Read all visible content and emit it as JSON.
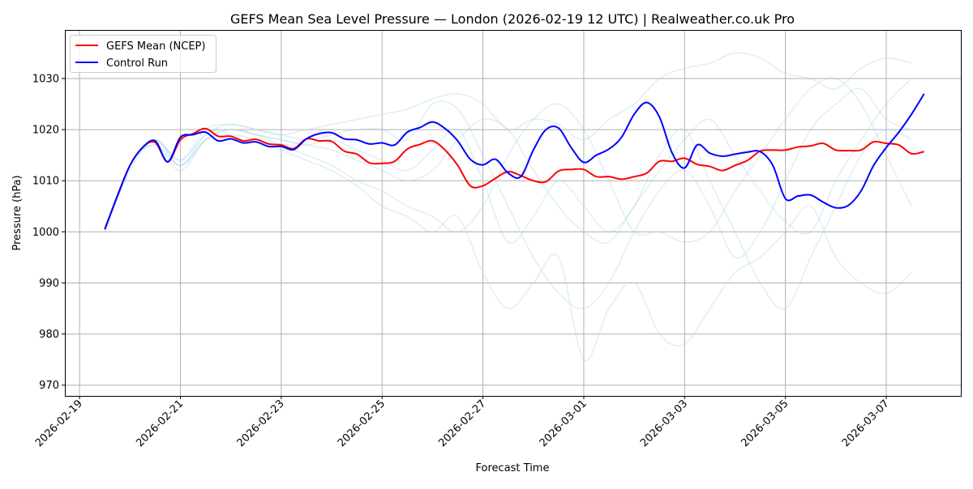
{
  "chart_data": {
    "type": "line",
    "title": "GEFS Mean Sea Level Pressure — London (2026-02-19 12 UTC) | Realweather.co.uk Pro",
    "xlabel": "Forecast Time",
    "ylabel": "Pressure (hPa)",
    "ylim": [
      967.9,
      1039.5
    ],
    "xlim": [
      "2026-02-18T17:00",
      "2026-03-08T11:30"
    ],
    "grid": true,
    "legend_placement": "top-left",
    "x_ticks": [
      "2026-02-19",
      "2026-02-21",
      "2026-02-23",
      "2026-02-25",
      "2026-02-27",
      "2026-03-01",
      "2026-03-03",
      "2026-03-05",
      "2026-03-07"
    ],
    "y_ticks": [
      970,
      980,
      990,
      1000,
      1010,
      1020,
      1030
    ],
    "times": [
      "2026-02-19T12:00",
      "2026-02-19T18:00",
      "2026-02-20T00:00",
      "2026-02-20T06:00",
      "2026-02-20T12:00",
      "2026-02-20T18:00",
      "2026-02-21T00:00",
      "2026-02-21T06:00",
      "2026-02-21T12:00",
      "2026-02-21T18:00",
      "2026-02-22T00:00",
      "2026-02-22T06:00",
      "2026-02-22T12:00",
      "2026-02-22T18:00",
      "2026-02-23T00:00",
      "2026-02-23T06:00",
      "2026-02-23T12:00",
      "2026-02-23T18:00",
      "2026-02-24T00:00",
      "2026-02-24T06:00",
      "2026-02-24T12:00",
      "2026-02-24T18:00",
      "2026-02-25T00:00",
      "2026-02-25T06:00",
      "2026-02-25T12:00",
      "2026-02-25T18:00",
      "2026-02-26T00:00",
      "2026-02-26T06:00",
      "2026-02-26T12:00",
      "2026-02-26T18:00",
      "2026-02-27T00:00",
      "2026-02-27T06:00",
      "2026-02-27T12:00",
      "2026-02-27T18:00",
      "2026-02-28T00:00",
      "2026-02-28T06:00",
      "2026-02-28T12:00",
      "2026-02-28T18:00",
      "2026-03-01T00:00",
      "2026-03-01T06:00",
      "2026-03-01T12:00",
      "2026-03-01T18:00",
      "2026-03-02T00:00",
      "2026-03-02T06:00",
      "2026-03-02T12:00",
      "2026-03-02T18:00",
      "2026-03-03T00:00",
      "2026-03-03T06:00",
      "2026-03-03T12:00",
      "2026-03-03T18:00",
      "2026-03-04T00:00",
      "2026-03-04T06:00",
      "2026-03-04T12:00",
      "2026-03-04T18:00",
      "2026-03-05T00:00",
      "2026-03-05T06:00",
      "2026-03-05T12:00",
      "2026-03-05T18:00",
      "2026-03-06T00:00",
      "2026-03-06T06:00",
      "2026-03-06T12:00",
      "2026-03-06T18:00",
      "2026-03-07T00:00",
      "2026-03-07T06:00",
      "2026-03-07T12:00",
      "2026-03-07T18:00"
    ],
    "series": [
      {
        "name": "GEFS Mean (NCEP)",
        "color": "#ff0000",
        "values": [
          1000.5,
          1007,
          1013,
          1016.5,
          1017.5,
          1013.7,
          1018,
          1019.2,
          1020.2,
          1018.7,
          1018.7,
          1017.8,
          1018.1,
          1017.2,
          1017,
          1016.3,
          1018.2,
          1017.8,
          1017.7,
          1015.8,
          1015.2,
          1013.5,
          1013.4,
          1013.8,
          1016.2,
          1017.1,
          1017.8,
          1016,
          1013,
          1009,
          1009,
          1010.5,
          1011.8,
          1011,
          1010,
          1009.8,
          1011.9,
          1012.2,
          1012.2,
          1010.8,
          1010.8,
          1010.3,
          1010.8,
          1011.5,
          1013.8,
          1013.8,
          1014.4,
          1013.2,
          1012.8,
          1012,
          1013,
          1014,
          1015.8,
          1016,
          1016,
          1016.6,
          1016.8,
          1017.3,
          1016,
          1015.9,
          1016,
          1017.6,
          1017.3,
          1017,
          1015.3,
          1015.7
        ]
      },
      {
        "name": "Control Run",
        "color": "#0000ff",
        "values": [
          1000.5,
          1007,
          1013,
          1016.5,
          1017.8,
          1013.7,
          1018.5,
          1019,
          1019.5,
          1017.8,
          1018.2,
          1017.4,
          1017.6,
          1016.7,
          1016.7,
          1016.1,
          1018.2,
          1019.2,
          1019.4,
          1018.2,
          1018,
          1017.2,
          1017.4,
          1017,
          1019.5,
          1020.4,
          1021.5,
          1020.2,
          1017.8,
          1014.2,
          1013.1,
          1014.2,
          1011.5,
          1010.8,
          1016,
          1020,
          1020.3,
          1016.5,
          1013.6,
          1015,
          1016.2,
          1018.5,
          1023,
          1025.3,
          1022.5,
          1015.5,
          1012.5,
          1017,
          1015.4,
          1014.8,
          1015.2,
          1015.6,
          1015.7,
          1013,
          1006.5,
          1007,
          1007.2,
          1005.8,
          1004.7,
          1005.2,
          1008,
          1013,
          1016.5,
          1019.5,
          1023,
          1027
        ]
      }
    ],
    "ensemble": {
      "color": "#add8e6",
      "times": [
        "2026-02-19T12:00",
        "2026-02-20T00:00",
        "2026-02-20T12:00",
        "2026-02-21T00:00",
        "2026-02-21T12:00",
        "2026-02-22T00:00",
        "2026-02-22T12:00",
        "2026-02-23T00:00",
        "2026-02-23T12:00",
        "2026-02-24T00:00",
        "2026-02-24T12:00",
        "2026-02-25T00:00",
        "2026-02-25T12:00",
        "2026-02-26T00:00",
        "2026-02-26T12:00",
        "2026-02-27T00:00",
        "2026-02-27T12:00",
        "2026-02-28T00:00",
        "2026-02-28T12:00",
        "2026-03-01T00:00",
        "2026-03-01T12:00",
        "2026-03-02T00:00",
        "2026-03-02T12:00",
        "2026-03-03T00:00",
        "2026-03-03T12:00",
        "2026-03-04T00:00",
        "2026-03-04T12:00",
        "2026-03-05T00:00",
        "2026-03-05T12:00",
        "2026-03-06T00:00",
        "2026-03-06T12:00",
        "2026-03-07T00:00",
        "2026-03-07T12:00"
      ],
      "members": [
        [
          1000.5,
          1013,
          1018,
          1014,
          1020,
          1021,
          1020,
          1019,
          1020,
          1021,
          1022,
          1023,
          1024,
          1026,
          1027,
          1025,
          1020,
          1022,
          1021,
          1018,
          1022,
          1025,
          1030,
          1032,
          1033,
          1035,
          1034,
          1031,
          1030,
          1028,
          1032,
          1034,
          1033
        ],
        [
          1000.5,
          1013,
          1017,
          1013,
          1018,
          1019,
          1018,
          1016,
          1014,
          1012,
          1009,
          1005,
          1003,
          1000,
          1003,
          992,
          985,
          990,
          995,
          975,
          985,
          990,
          980,
          978,
          985,
          992,
          995,
          1000,
          1005,
          995,
          990,
          988,
          992
        ],
        [
          1000,
          1013,
          1018,
          1013,
          1019,
          1020,
          1019,
          1018,
          1017,
          1018,
          1016,
          1014,
          1012,
          1016,
          1020,
          1010,
          998,
          1003,
          1010,
          1005,
          1000,
          1005,
          1015,
          1020,
          1010,
          1000,
          990,
          985,
          995,
          1005,
          1015,
          1020,
          1018
        ],
        [
          1000.5,
          1013,
          1017,
          1012,
          1018,
          1020,
          1019,
          1018,
          1017,
          1016,
          1014,
          1012,
          1010,
          1012,
          1018,
          1022,
          1020,
          1012,
          1005,
          1000,
          998,
          1005,
          1012,
          1018,
          1022,
          1015,
          1008,
          1002,
          1000,
          1010,
          1018,
          1025,
          1030
        ],
        [
          1000.5,
          1013,
          1018,
          1014,
          1019,
          1021,
          1020,
          1019,
          1018,
          1019,
          1020,
          1020,
          1018,
          1025,
          1024,
          1015,
          1005,
          995,
          988,
          985,
          990,
          1000,
          1008,
          1012,
          1005,
          995,
          1000,
          1010,
          1020,
          1025,
          1028,
          1022,
          1020
        ],
        [
          1000,
          1012,
          1018,
          1013,
          1018,
          1020,
          1019,
          1017,
          1015,
          1013,
          1010,
          1008,
          1005,
          1003,
          1000,
          1005,
          1015,
          1022,
          1025,
          1020,
          1010,
          1000,
          1000,
          998,
          1000,
          1008,
          1015,
          1022,
          1028,
          1030,
          1025,
          1015,
          1005
        ]
      ]
    }
  }
}
